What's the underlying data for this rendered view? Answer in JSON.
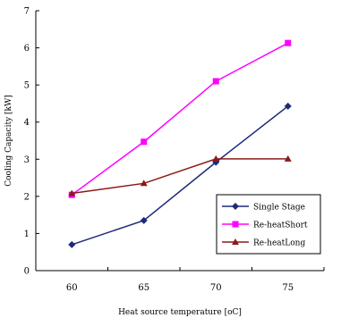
{
  "chart_data": {
    "type": "line",
    "xlabel": "Heat source temperature [oC]",
    "ylabel": "Cooling Capacity [kW]",
    "x": [
      60,
      65,
      70,
      75
    ],
    "xlim": [
      57.5,
      77.5
    ],
    "ylim": [
      0,
      7
    ],
    "yticks": [
      0,
      1,
      2,
      3,
      4,
      5,
      6,
      7
    ],
    "grid": false,
    "legend_position": "bottom-right",
    "series": [
      {
        "name": "Single Stage",
        "values": [
          0.7,
          1.35,
          2.92,
          4.43
        ],
        "color": "#1e2a78",
        "marker": "diamond"
      },
      {
        "name": "Re-heatShort",
        "values": [
          2.04,
          3.47,
          5.1,
          6.13
        ],
        "color": "#ff00ff",
        "marker": "square"
      },
      {
        "name": "Re-heatLong",
        "values": [
          2.08,
          2.35,
          3.01,
          3.01
        ],
        "color": "#8b1a1a",
        "marker": "triangle"
      }
    ]
  }
}
